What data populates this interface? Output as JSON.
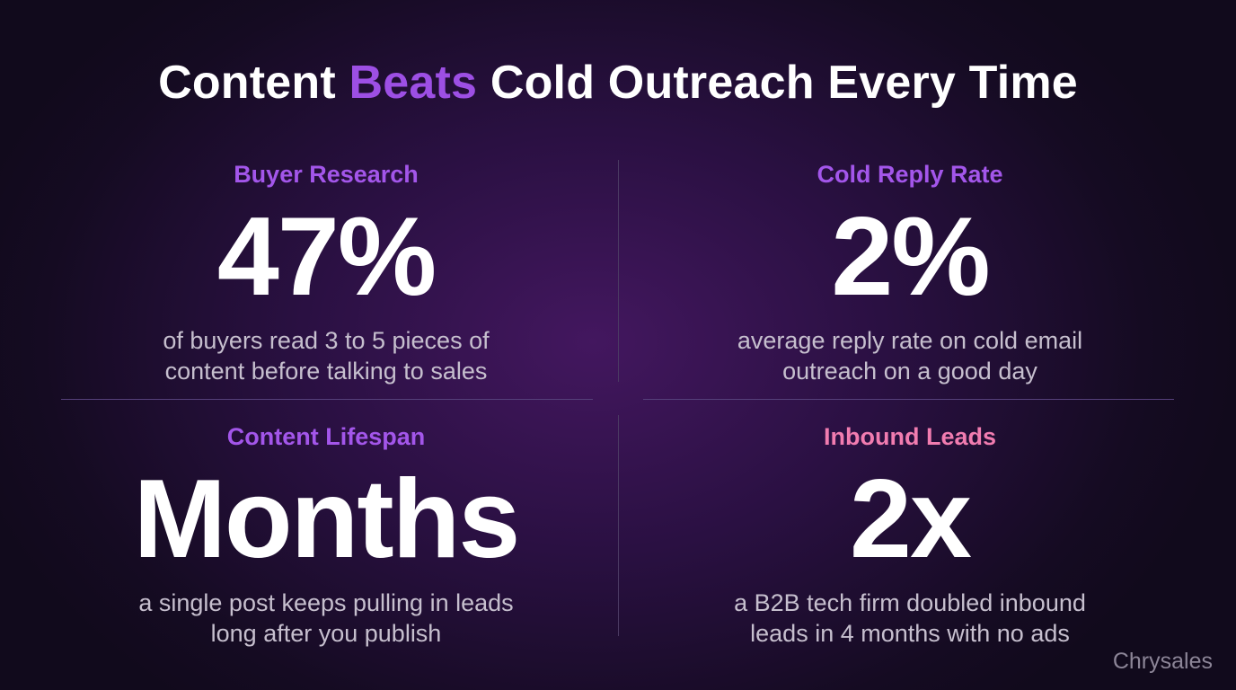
{
  "title": {
    "before": "Content ",
    "highlight": "Beats",
    "after": " Cold Outreach Every Time"
  },
  "stats": [
    {
      "label": "Buyer Research",
      "value": "47%",
      "description": [
        "of buyers read 3 to 5 pieces of",
        "content before talking to sales"
      ]
    },
    {
      "label": "Cold Reply Rate",
      "value": "2%",
      "description": [
        "average reply rate on cold email",
        "outreach on a good day"
      ]
    },
    {
      "label": "Content Lifespan",
      "value": "Months",
      "description": [
        "a single post keeps pulling in leads",
        "long after you publish"
      ]
    },
    {
      "label": "Inbound Leads",
      "value": "2x",
      "description": [
        "a B2B tech firm doubled inbound",
        "leads in 4 months with no ads"
      ]
    }
  ],
  "brand": "Chrysales"
}
